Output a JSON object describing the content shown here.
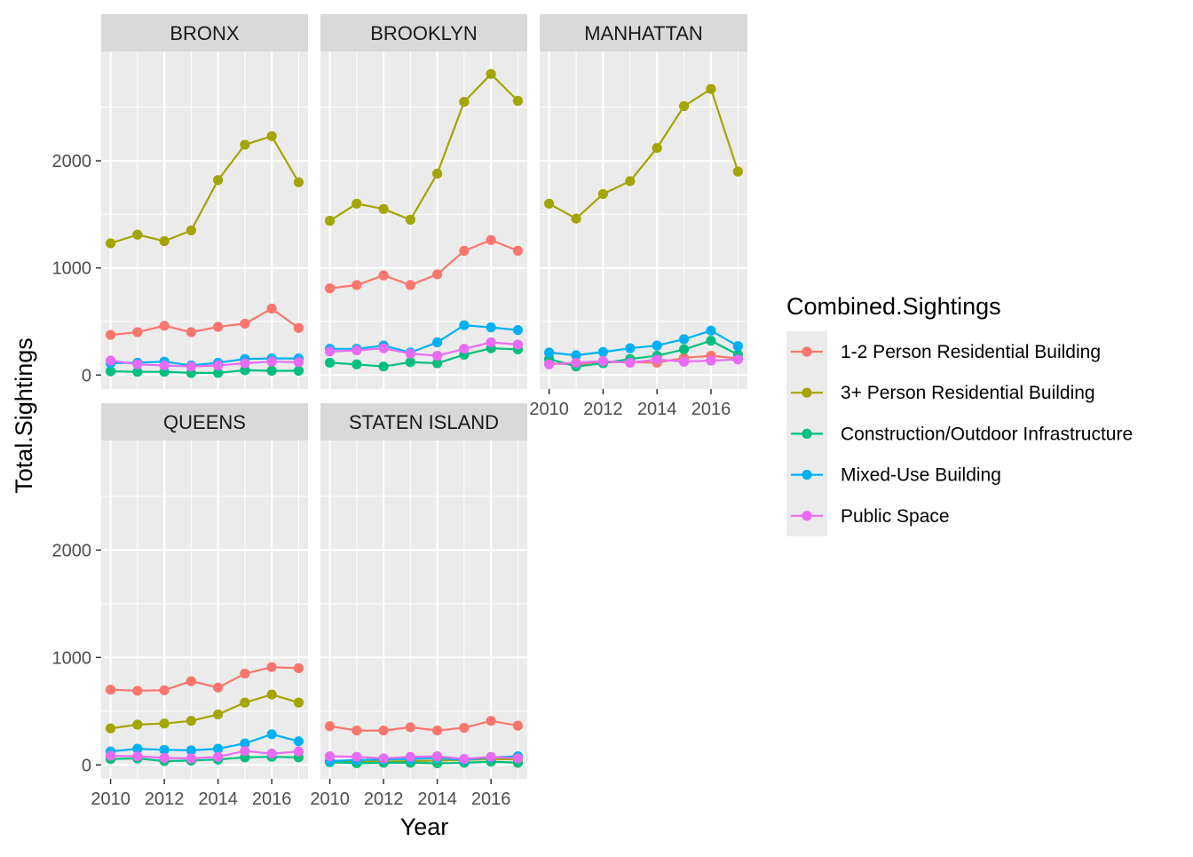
{
  "chart_data": {
    "type": "line",
    "title": "",
    "xlabel": "Year",
    "ylabel": "Total.Sightings",
    "x": [
      2010,
      2011,
      2012,
      2013,
      2014,
      2015,
      2016,
      2017
    ],
    "x_ticks": [
      "2010",
      "2012",
      "2014",
      "2016"
    ],
    "y_ticks": [
      "0",
      "1000",
      "2000"
    ],
    "ylim": [
      -130,
      3020
    ],
    "xlim": [
      2009.65,
      2017.35
    ],
    "grid": true,
    "legend": {
      "title": "Combined.Sightings",
      "placement": "right",
      "entries": [
        "1-2 Person Residential Building",
        "3+ Person Residential Building",
        "Construction/Outdoor Infrastructure",
        "Mixed-Use Building",
        "Public Space"
      ]
    },
    "colors": [
      "#F8766D",
      "#A3A500",
      "#00BF7D",
      "#00B0F6",
      "#E76BF3"
    ],
    "facets": [
      {
        "label": "BRONX",
        "series": [
          {
            "name": "1-2 Person Residential Building",
            "values": [
              375,
              400,
              460,
              400,
              450,
              480,
              620,
              440
            ]
          },
          {
            "name": "3+ Person Residential Building",
            "values": [
              1230,
              1310,
              1250,
              1350,
              1820,
              2150,
              2230,
              1800
            ]
          },
          {
            "name": "Construction/Outdoor Infrastructure",
            "values": [
              35,
              30,
              30,
              20,
              20,
              45,
              40,
              40
            ]
          },
          {
            "name": "Mixed-Use Building",
            "values": [
              110,
              115,
              125,
              90,
              115,
              150,
              155,
              155
            ]
          },
          {
            "name": "Public Space",
            "values": [
              135,
              100,
              90,
              80,
              90,
              110,
              125,
              120
            ]
          }
        ]
      },
      {
        "label": "BROOKLYN",
        "series": [
          {
            "name": "1-2 Person Residential Building",
            "values": [
              810,
              840,
              930,
              840,
              940,
              1160,
              1260,
              1160
            ]
          },
          {
            "name": "3+ Person Residential Building",
            "values": [
              1440,
              1600,
              1550,
              1450,
              1880,
              2550,
              2810,
              2560
            ]
          },
          {
            "name": "Construction/Outdoor Infrastructure",
            "values": [
              115,
              100,
              80,
              120,
              110,
              190,
              250,
              240
            ]
          },
          {
            "name": "Mixed-Use Building",
            "values": [
              245,
              245,
              275,
              210,
              305,
              465,
              445,
              420
            ]
          },
          {
            "name": "Public Space",
            "values": [
              220,
              230,
              250,
              200,
              180,
              245,
              305,
              285
            ]
          }
        ]
      },
      {
        "label": "MANHATTAN",
        "series": [
          {
            "name": "1-2 Person Residential Building",
            "values": [
              110,
              100,
              120,
              120,
              115,
              160,
              180,
              155
            ]
          },
          {
            "name": "3+ Person Residential Building",
            "values": [
              1600,
              1460,
              1690,
              1810,
              2120,
              2510,
              2670,
              1900
            ]
          },
          {
            "name": "Construction/Outdoor Infrastructure",
            "values": [
              150,
              80,
              110,
              150,
              180,
              240,
              320,
              190
            ]
          },
          {
            "name": "Mixed-Use Building",
            "values": [
              210,
              185,
              215,
              250,
              275,
              335,
              415,
              270
            ]
          },
          {
            "name": "Public Space",
            "values": [
              100,
              115,
              130,
              115,
              145,
              125,
              135,
              145
            ]
          }
        ]
      },
      {
        "label": "QUEENS",
        "series": [
          {
            "name": "1-2 Person Residential Building",
            "values": [
              700,
              690,
              695,
              780,
              720,
              850,
              910,
              900
            ]
          },
          {
            "name": "3+ Person Residential Building",
            "values": [
              340,
              375,
              385,
              410,
              470,
              580,
              655,
              580
            ]
          },
          {
            "name": "Construction/Outdoor Infrastructure",
            "values": [
              55,
              60,
              35,
              40,
              50,
              70,
              75,
              70
            ]
          },
          {
            "name": "Mixed-Use Building",
            "values": [
              125,
              150,
              140,
              135,
              150,
              200,
              285,
              220
            ]
          },
          {
            "name": "Public Space",
            "values": [
              85,
              80,
              65,
              60,
              75,
              130,
              105,
              125
            ]
          }
        ]
      },
      {
        "label": "STATEN ISLAND",
        "series": [
          {
            "name": "1-2 Person Residential Building",
            "values": [
              360,
              320,
              320,
              350,
              320,
              345,
              410,
              365
            ]
          },
          {
            "name": "3+ Person Residential Building",
            "values": [
              40,
              30,
              30,
              35,
              40,
              45,
              55,
              50
            ]
          },
          {
            "name": "Construction/Outdoor Infrastructure",
            "values": [
              25,
              15,
              20,
              20,
              15,
              20,
              30,
              20
            ]
          },
          {
            "name": "Mixed-Use Building",
            "values": [
              35,
              45,
              50,
              55,
              65,
              45,
              70,
              80
            ]
          },
          {
            "name": "Public Space",
            "values": [
              80,
              75,
              60,
              75,
              80,
              55,
              75,
              60
            ]
          }
        ]
      }
    ]
  }
}
